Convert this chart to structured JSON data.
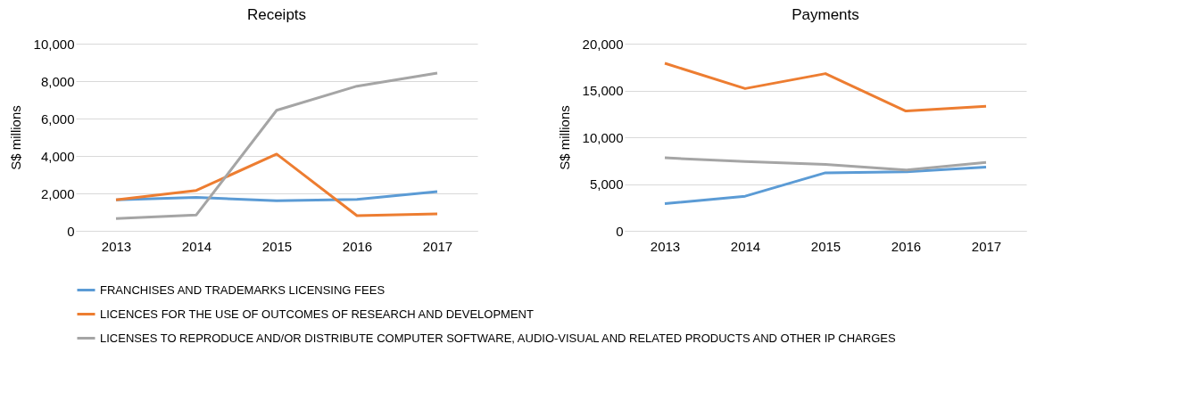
{
  "chart_data": [
    {
      "type": "line",
      "title": "Receipts",
      "ylabel": "S$ millions",
      "categories": [
        "2013",
        "2014",
        "2015",
        "2016",
        "2017"
      ],
      "ylim": [
        0,
        10000
      ],
      "yticks": [
        {
          "value": 0,
          "label": "0"
        },
        {
          "value": 2000,
          "label": "2,000"
        },
        {
          "value": 4000,
          "label": "4,000"
        },
        {
          "value": 6000,
          "label": "6,000"
        },
        {
          "value": 8000,
          "label": "8,000"
        },
        {
          "value": 10000,
          "label": "10,000"
        }
      ],
      "grid": "y",
      "legend": "bottom",
      "series": [
        {
          "name": "FRANCHISES AND TRADEMARKS LICENSING FEES",
          "color": "#5b9bd5",
          "values": [
            1650,
            1780,
            1610,
            1680,
            2090
          ]
        },
        {
          "name": "LICENCES FOR THE USE OF OUTCOMES OF RESEARCH AND DEVELOPMENT",
          "color": "#ed7d31",
          "values": [
            1650,
            2160,
            4100,
            810,
            900
          ]
        },
        {
          "name": "LICENSES TO REPRODUCE AND/OR DISTRIBUTE COMPUTER SOFTWARE, AUDIO-VISUAL AND RELATED PRODUCTS AND OTHER IP CHARGES",
          "color": "#a5a5a5",
          "values": [
            660,
            850,
            6440,
            7730,
            8430
          ]
        }
      ]
    },
    {
      "type": "line",
      "title": "Payments",
      "ylabel": "S$ millions",
      "categories": [
        "2013",
        "2014",
        "2015",
        "2016",
        "2017"
      ],
      "ylim": [
        0,
        20000
      ],
      "yticks": [
        {
          "value": 0,
          "label": "0"
        },
        {
          "value": 5000,
          "label": "5,000"
        },
        {
          "value": 10000,
          "label": "10,000"
        },
        {
          "value": 15000,
          "label": "15,000"
        },
        {
          "value": 20000,
          "label": "20,000"
        }
      ],
      "grid": "y",
      "legend": "bottom",
      "series": [
        {
          "name": "FRANCHISES AND TRADEMARKS LICENSING FEES",
          "color": "#5b9bd5",
          "values": [
            2900,
            3700,
            6200,
            6300,
            6800
          ]
        },
        {
          "name": "LICENCES FOR THE USE OF OUTCOMES OF RESEARCH AND DEVELOPMENT",
          "color": "#ed7d31",
          "values": [
            17900,
            15200,
            16800,
            12800,
            13300
          ]
        },
        {
          "name": "LICENSES TO REPRODUCE AND/OR DISTRIBUTE COMPUTER SOFTWARE, AUDIO-VISUAL AND RELATED PRODUCTS AND OTHER IP CHARGES",
          "color": "#a5a5a5",
          "values": [
            7800,
            7400,
            7100,
            6500,
            7300
          ]
        }
      ]
    }
  ]
}
